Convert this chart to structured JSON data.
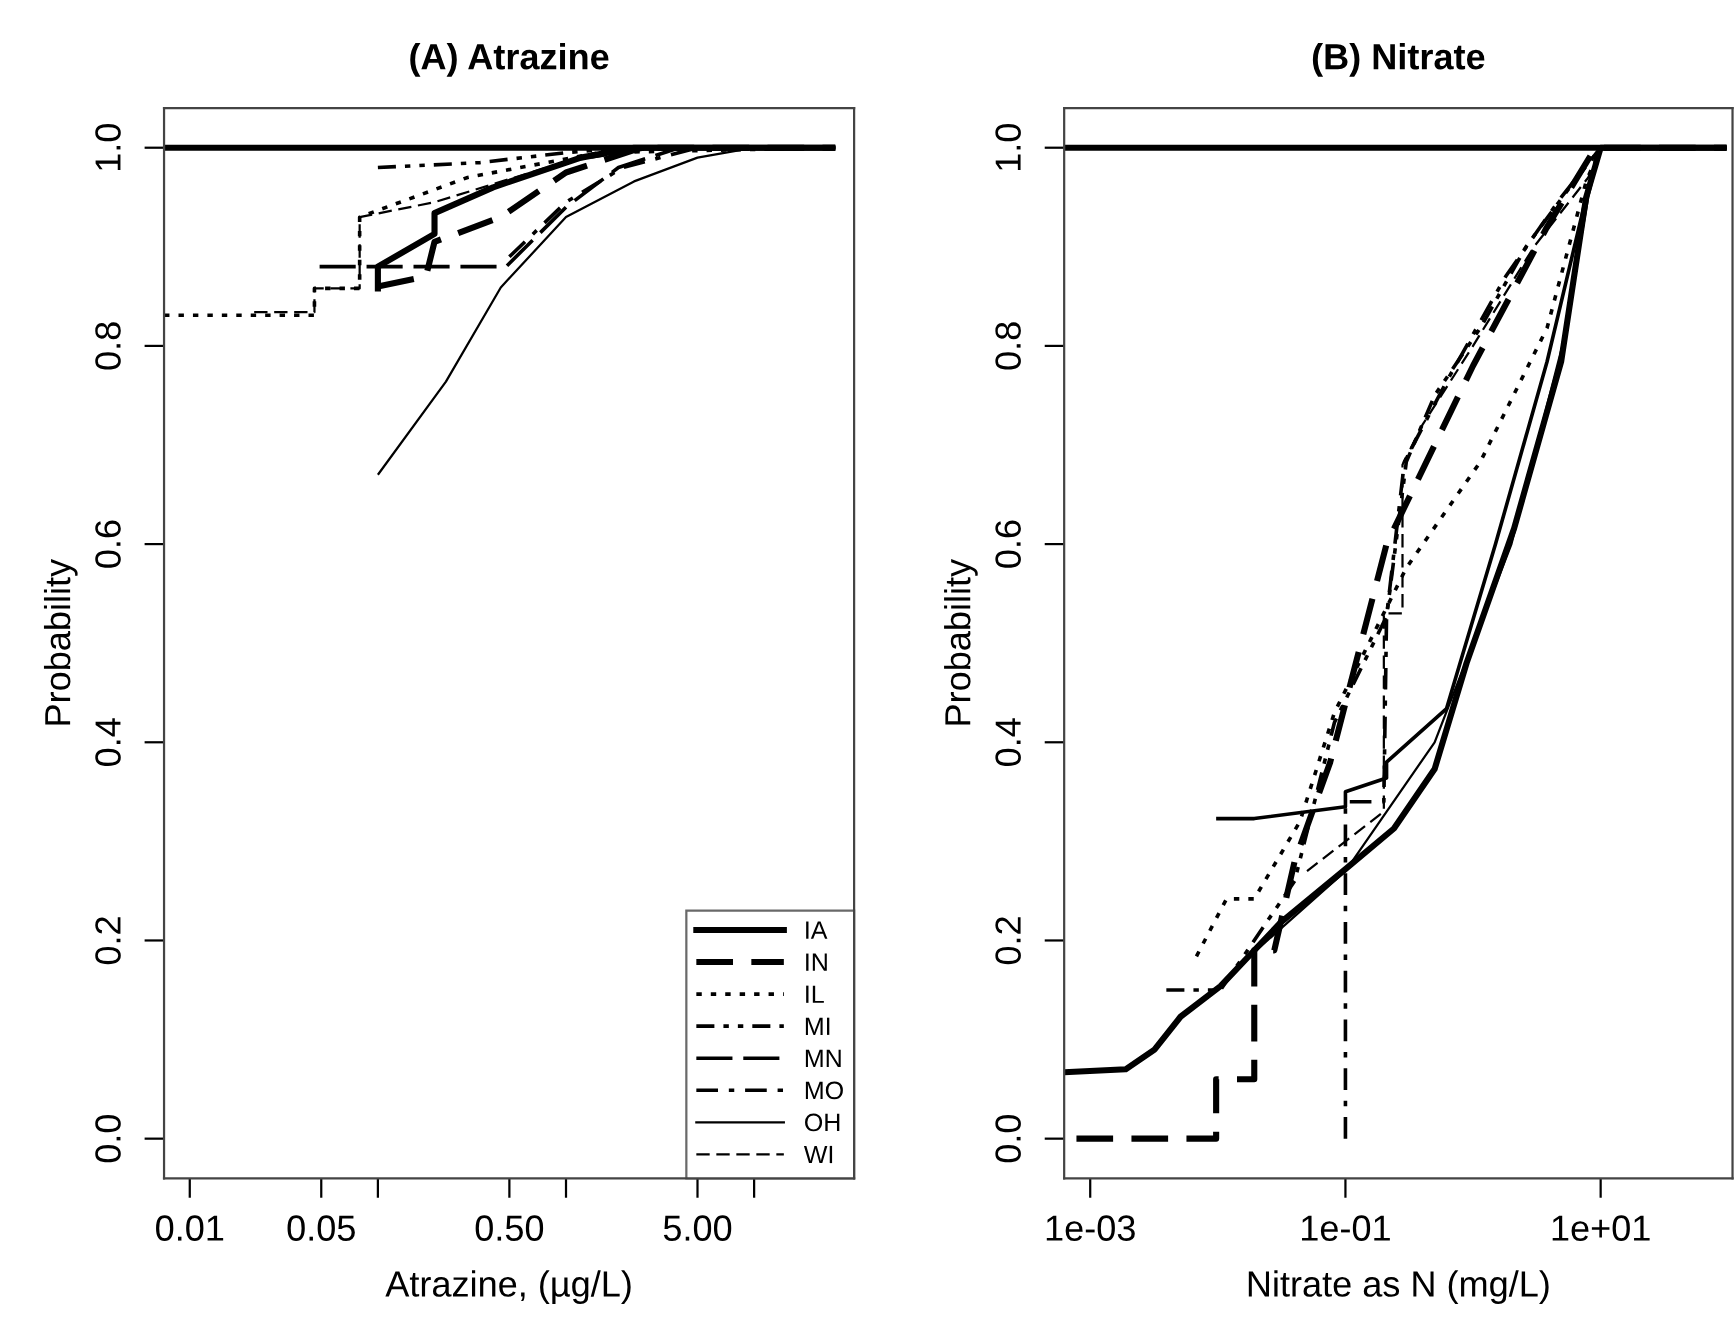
{
  "chart_data": [
    {
      "type": "line",
      "title": "(A) Atrazine",
      "xlabel": "Atrazine, (µg/L)",
      "ylabel": "Probability",
      "log": "x",
      "grid": false,
      "legend": "bottom right",
      "xlim": [
        0.0073,
        34
      ],
      "ylim": [
        -0.04,
        1.04
      ],
      "xticks": [
        0.01,
        0.05,
        {
          "value": 0.1,
          "label": null
        },
        {
          "value": 0.5,
          "label": "0.50"
        },
        {
          "value": 1,
          "label": null
        },
        {
          "value": 5,
          "label": "5.00"
        },
        {
          "value": 10,
          "label": null
        }
      ],
      "yticks": [
        {
          "value": 0,
          "label": "0.0"
        },
        {
          "value": 0.2,
          "label": "0.2"
        },
        {
          "value": 0.4,
          "label": "0.4"
        },
        {
          "value": 0.6,
          "label": "0.6"
        },
        {
          "value": 0.8,
          "label": "0.8"
        },
        {
          "value": 1,
          "label": "1.0"
        }
      ],
      "series": [
        {
          "name": "IA",
          "color": "#000000",
          "line_style": "solid",
          "x": [
            0.1,
            0.1,
            0.2,
            0.2,
            0.41,
            1.2,
            2.3,
            27
          ],
          "values": [
            0.855,
            0.88,
            0.913,
            0.934,
            0.96,
            0.99,
            1.0,
            1.0
          ]
        },
        {
          "name": "IN",
          "color": "#000000",
          "line_style": "dashed",
          "x": [
            0.1,
            0.18,
            0.2,
            0.45,
            1.0,
            2.5,
            27
          ],
          "values": [
            0.86,
            0.87,
            0.905,
            0.93,
            0.975,
            1.0,
            1.0
          ]
        },
        {
          "name": "IL",
          "color": "#000000",
          "line_style": "dotted",
          "x": [
            0.0073,
            0.046,
            0.046,
            0.08,
            0.08,
            0.3,
            1.5,
            27
          ],
          "values": [
            0.831,
            0.831,
            0.858,
            0.858,
            0.93,
            0.97,
            0.995,
            1.0
          ]
        },
        {
          "name": "MI",
          "color": "#000000",
          "line_style": "dashdotdot",
          "x": [
            0.1,
            0.35,
            1.0,
            2.0,
            27
          ],
          "values": [
            0.98,
            0.985,
            0.995,
            1.0,
            1.0
          ]
        },
        {
          "name": "MN",
          "color": "#000000",
          "line_style": "longdash",
          "x": [
            0.049,
            0.48,
            1.0,
            1.9,
            4.0,
            27
          ],
          "values": [
            0.88,
            0.88,
            0.94,
            0.98,
            1.0,
            1.0
          ]
        },
        {
          "name": "MO",
          "color": "#000000",
          "line_style": "dashdot",
          "x": [
            0.5,
            1.0,
            2.0,
            5.0,
            27
          ],
          "values": [
            0.89,
            0.945,
            0.98,
            1.0,
            1.0
          ]
        },
        {
          "name": "OH",
          "color": "#000000",
          "line_style": "solid",
          "x": [
            0.1,
            0.23,
            0.45,
            1.0,
            2.3,
            5.0,
            10,
            27
          ],
          "values": [
            0.67,
            0.764,
            0.859,
            0.93,
            0.966,
            0.99,
            1.0,
            1.0
          ]
        },
        {
          "name": "WI",
          "color": "#000000",
          "line_style": "dashed",
          "x": [
            0.022,
            0.046,
            0.046,
            0.08,
            0.08,
            0.2,
            1.0,
            3.0,
            27
          ],
          "values": [
            0.834,
            0.834,
            0.858,
            0.858,
            0.93,
            0.945,
            0.986,
            1.0,
            1.0
          ]
        },
        {
          "color": "#000000",
          "line_style": "solid",
          "x": [
            0.0073,
            27
          ],
          "values": [
            1.0,
            1.0
          ]
        }
      ]
    },
    {
      "type": "line",
      "title": "(B) Nitrate",
      "xlabel": "Nitrate as N (mg/L)",
      "ylabel": "Probability",
      "log": "x",
      "grid": false,
      "xlim": [
        0.000625,
        108
      ],
      "ylim": [
        -0.04,
        1.04
      ],
      "xticks": [
        {
          "value": 0.001,
          "label": "1e-03"
        },
        {
          "value": 0.1,
          "label": "1e-01"
        },
        {
          "value": 10,
          "label": "1e+01"
        }
      ],
      "yticks": [
        {
          "value": 0,
          "label": "0.0"
        },
        {
          "value": 0.2,
          "label": "0.2"
        },
        {
          "value": 0.4,
          "label": "0.4"
        },
        {
          "value": 0.6,
          "label": "0.6"
        },
        {
          "value": 0.8,
          "label": "0.8"
        },
        {
          "value": 1,
          "label": "1.0"
        }
      ],
      "series": [
        {
          "color": "#000000",
          "line_style": "solid",
          "x": [
            0.000625,
            0.0019,
            0.0032,
            0.0051,
            0.0105,
            0.031,
            0.1,
            0.24,
            0.5,
            0.89,
            2.1,
            4.9,
            7.7,
            10,
            97
          ],
          "values": [
            0.067,
            0.07,
            0.09,
            0.123,
            0.154,
            0.218,
            0.272,
            0.313,
            0.373,
            0.48,
            0.616,
            0.784,
            0.95,
            1.0,
            1.0
          ]
        },
        {
          "color": "#000000",
          "line_style": "dashed",
          "x": [
            0.00078,
            0.0097,
            0.0097,
            0.0193,
            0.0193,
            0.0277,
            0.04,
            0.076,
            0.21,
            1.0,
            3.8,
            9.1,
            97
          ],
          "values": [
            0.0,
            0.0,
            0.06,
            0.06,
            0.19,
            0.19,
            0.28,
            0.38,
            0.6,
            0.78,
            0.92,
            1.0,
            1.0
          ]
        },
        {
          "color": "#000000",
          "line_style": "dotted",
          "x": [
            0.0068,
            0.0117,
            0.0193,
            0.044,
            0.082,
            0.3,
            1.14,
            3.8,
            7.7,
            10,
            97
          ],
          "values": [
            0.184,
            0.242,
            0.242,
            0.32,
            0.43,
            0.576,
            0.683,
            0.818,
            0.966,
            1.0,
            1.0
          ]
        },
        {
          "color": "#000000",
          "line_style": "dashdotdot",
          "x": [
            0.00395,
            0.0105,
            0.04,
            0.082,
            0.21,
            0.3,
            0.5,
            1.14,
            2.6,
            6.2,
            10,
            97
          ],
          "values": [
            0.15,
            0.15,
            0.26,
            0.42,
            0.527,
            0.683,
            0.75,
            0.818,
            0.9,
            0.966,
            1.0,
            1.0
          ]
        },
        {
          "color": "#000000",
          "line_style": "solid",
          "x": [
            0.0097,
            0.0193,
            0.1,
            0.1,
            0.21,
            0.21,
            0.62,
            1.5,
            3.8,
            7.7,
            10,
            97
          ],
          "values": [
            0.323,
            0.323,
            0.335,
            0.35,
            0.364,
            0.38,
            0.434,
            0.6,
            0.784,
            0.95,
            1.0,
            1.0
          ]
        },
        {
          "color": "#000000",
          "line_style": "dashdot",
          "x": [
            0.1,
            0.1,
            0.2,
            0.21,
            0.29,
            0.62,
            1.8,
            4.9,
            10,
            97
          ],
          "values": [
            0.0,
            0.34,
            0.34,
            0.527,
            0.683,
            0.764,
            0.87,
            0.95,
            1.0,
            1.0
          ]
        },
        {
          "color": "#000000",
          "line_style": "solid",
          "x": [
            0.02,
            0.1,
            0.5,
            2,
            5,
            8,
            10,
            97
          ],
          "values": [
            0.19,
            0.27,
            0.4,
            0.6,
            0.8,
            0.95,
            1.0,
            1.0
          ]
        },
        {
          "color": "#000000",
          "line_style": "dashed",
          "x": [
            0.05,
            0.1,
            0.2,
            0.2,
            0.28,
            0.28,
            0.4,
            1,
            3,
            8,
            10,
            97
          ],
          "values": [
            0.27,
            0.3,
            0.33,
            0.53,
            0.53,
            0.68,
            0.72,
            0.8,
            0.9,
            0.97,
            1.0,
            1.0
          ]
        },
        {
          "color": "#000000",
          "line_style": "solid",
          "x": [
            0.000625,
            97
          ],
          "values": [
            1.0,
            1.0
          ]
        }
      ]
    }
  ]
}
